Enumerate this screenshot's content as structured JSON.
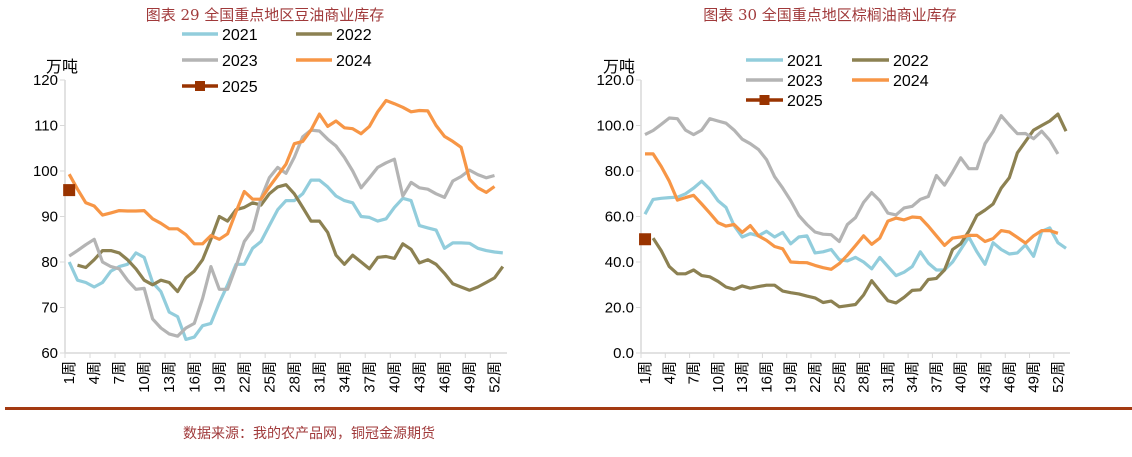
{
  "colors": {
    "2021": "#92cddc",
    "2022": "#8c8152",
    "2023": "#b4b4b4",
    "2024": "#f79646",
    "2025": "#993300",
    "title": "#a0393a",
    "rule": "#a33a12"
  },
  "source": "数据来源：我的农产品网，铜冠金源期货",
  "chart_data": [
    {
      "type": "line",
      "title": "图表 29  全国重点地区豆油商业库存",
      "ylabel": "万吨",
      "ylim": [
        60,
        120
      ],
      "yticks": [
        "60",
        "70",
        "80",
        "90",
        "100",
        "110",
        "120"
      ],
      "xtick_labels": [
        "1周",
        "4周",
        "7周",
        "10周",
        "13周",
        "16周",
        "19周",
        "22周",
        "25周",
        "28周",
        "31周",
        "34周",
        "37周",
        "40周",
        "43周",
        "46周",
        "49周",
        "52周"
      ],
      "x_count": 53,
      "legend": "top",
      "series": [
        {
          "name": "2021",
          "values": [
            80,
            76,
            75.5,
            74.5,
            75.5,
            78,
            79,
            79.5,
            82,
            81,
            75.5,
            73.5,
            69,
            68,
            63,
            63.5,
            66,
            66.5,
            71,
            75,
            79.5,
            79.5,
            83,
            84.5,
            88,
            91.5,
            93.5,
            93.5,
            95,
            98,
            98,
            96.5,
            94.5,
            93.5,
            93,
            90,
            89.8,
            89,
            89.5,
            92,
            94,
            93.5,
            88,
            87.5,
            87,
            83,
            84.2,
            84.2,
            84.1,
            83,
            82.5,
            82.2,
            82
          ]
        },
        {
          "name": "2022",
          "values": [
            null,
            79.3,
            78.8,
            80.5,
            82.5,
            82.5,
            82,
            80.5,
            78.5,
            76,
            75,
            76,
            75.5,
            73.5,
            76.5,
            78,
            80.5,
            85,
            90,
            89,
            91.5,
            92,
            93,
            92.5,
            95,
            96.5,
            97,
            95,
            92,
            89,
            89,
            86.5,
            81.5,
            79.5,
            81.5,
            80,
            78.5,
            81,
            81.2,
            80.8,
            84,
            82.8,
            79.8,
            80.5,
            79.5,
            77.5,
            75.2,
            74.5,
            73.8,
            74.5,
            75.5,
            76.5,
            79
          ]
        },
        {
          "name": "2023",
          "values": [
            81.3,
            82.5,
            83.8,
            85,
            80,
            79,
            78.5,
            76,
            74,
            74.2,
            67.5,
            65.5,
            64.2,
            63.7,
            65.5,
            66.5,
            72,
            79,
            74,
            74,
            79,
            84.5,
            87,
            94,
            98.5,
            100.8,
            99.5,
            103,
            107.5,
            109,
            108.8,
            107,
            105.5,
            103,
            100,
            96.3,
            98.5,
            100.8,
            101.8,
            102.6,
            94.5,
            97.5,
            96.3,
            96,
            95,
            94.2,
            97.8,
            98.8,
            100.2,
            99.2,
            98.5,
            99,
            null
          ]
        },
        {
          "name": "2024",
          "values": [
            99.3,
            96,
            93,
            92.3,
            90.3,
            90.8,
            91.3,
            91.2,
            91.2,
            91.3,
            89.5,
            88.5,
            87.3,
            87.3,
            86,
            84,
            84,
            85.8,
            85,
            86.2,
            91,
            95.5,
            93.8,
            93.8,
            96.5,
            99,
            101.5,
            106,
            106.5,
            109,
            112.5,
            109.8,
            111,
            109.5,
            109.3,
            108.2,
            109.8,
            113,
            115.5,
            114.8,
            114,
            113,
            113.3,
            113.2,
            110,
            107.6,
            106.5,
            105.2,
            98.2,
            96.3,
            95.3,
            96.6,
            null
          ]
        },
        {
          "name": "2025",
          "values": [
            95.8
          ],
          "marker": "square"
        }
      ]
    },
    {
      "type": "line",
      "title": "图表 30  全国重点地区棕榈油商业库存",
      "ylabel": "万吨",
      "ylim": [
        0,
        120
      ],
      "yticks": [
        "0.0",
        "20.0",
        "40.0",
        "60.0",
        "80.0",
        "100.0",
        "120.0"
      ],
      "xtick_labels": [
        "1周",
        "4周",
        "7周",
        "10周",
        "13周",
        "16周",
        "19周",
        "22周",
        "25周",
        "28周",
        "31周",
        "34周",
        "37周",
        "40周",
        "43周",
        "46周",
        "49周",
        "52周"
      ],
      "x_count": 53,
      "legend": "top",
      "series": [
        {
          "name": "2021",
          "values": [
            61,
            67.5,
            68,
            68.3,
            68.5,
            70,
            72.5,
            75.5,
            72,
            67,
            64,
            56,
            51,
            52.5,
            51.5,
            53.5,
            51,
            53,
            48,
            51,
            51.5,
            44,
            44.5,
            45.5,
            41,
            40.5,
            42,
            40,
            37,
            42,
            38,
            34,
            35.5,
            38,
            44.5,
            39.5,
            36.5,
            36.5,
            40,
            45.5,
            51,
            44.5,
            39,
            48.5,
            45.5,
            43.5,
            44,
            47.5,
            42.5,
            53.5,
            55,
            48.5,
            46
          ]
        },
        {
          "name": "2022",
          "values": [
            null,
            50.5,
            45,
            38,
            34.8,
            34.8,
            36.5,
            34,
            33.5,
            31.5,
            29,
            28,
            29.5,
            28.5,
            29.2,
            29.8,
            29.8,
            27.2,
            26.5,
            26,
            25,
            24.2,
            22.2,
            22.8,
            20.3,
            20.8,
            21.3,
            25.5,
            31.8,
            27.3,
            23,
            22,
            24.5,
            27.5,
            27.8,
            32.3,
            32.8,
            36.5,
            45.5,
            48,
            53.5,
            60.5,
            62.8,
            65.5,
            72.5,
            77,
            88,
            93,
            98,
            100,
            102,
            105,
            97.5
          ]
        },
        {
          "name": "2023",
          "values": [
            96,
            97.8,
            100.5,
            103.3,
            103,
            98,
            96,
            98,
            103,
            102,
            101,
            98,
            94,
            92,
            89.5,
            85,
            77.5,
            72.5,
            67,
            60.5,
            56.5,
            53.2,
            52.2,
            52,
            49,
            56.5,
            59.5,
            66.2,
            70.5,
            67,
            61.5,
            60.7,
            63.8,
            64.5,
            67.5,
            68.8,
            78,
            73.8,
            79.5,
            85.8,
            81,
            81,
            92,
            97.3,
            104.3,
            100.2,
            96.4,
            96.5,
            94.2,
            97.5,
            93.5,
            87.5,
            null
          ]
        },
        {
          "name": "2024",
          "values": [
            87.5,
            87.5,
            82,
            75.5,
            67.2,
            68.3,
            69.3,
            65.5,
            61.5,
            57.3,
            55.8,
            56.5,
            53,
            56,
            51.5,
            49.5,
            46.8,
            45.8,
            40,
            39.8,
            39.7,
            38.5,
            37.5,
            36.8,
            39.3,
            43,
            47.2,
            51.5,
            47.8,
            50.5,
            58,
            59.3,
            58.5,
            59.8,
            59.5,
            55.8,
            51.5,
            47.3,
            50.5,
            51,
            51.7,
            51.7,
            49,
            50.3,
            53.8,
            53.2,
            50.8,
            48.3,
            51.5,
            53.8,
            53.8,
            52.6,
            null
          ]
        },
        {
          "name": "2025",
          "values": [
            50
          ],
          "marker": "square"
        }
      ]
    }
  ]
}
